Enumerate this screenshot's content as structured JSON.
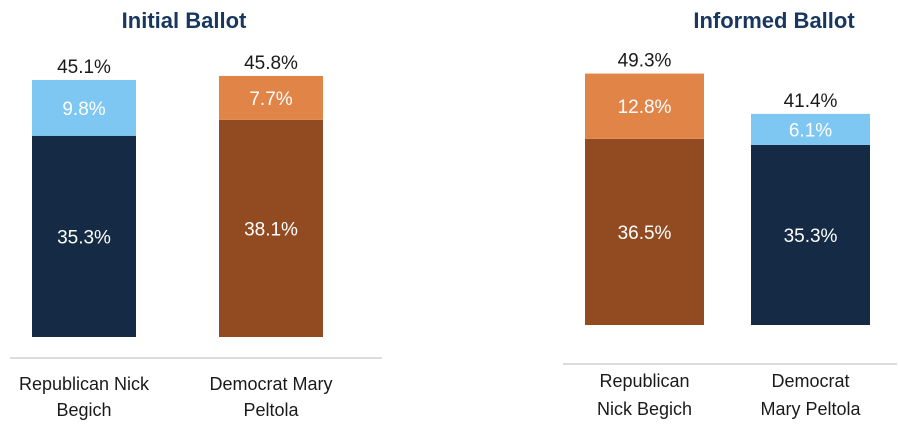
{
  "colors": {
    "navy": "#142a45",
    "light_blue": "#7ec7f2",
    "brown": "#924b21",
    "orange": "#e08448",
    "title": "#17375e",
    "axis": "#d0d0d0"
  },
  "chart_data": [
    {
      "type": "bar",
      "stacked": true,
      "title": "Initial Ballot",
      "categories": [
        "Republican Nick Begich",
        "Democrat Mary Peltola"
      ],
      "category_lines": [
        [
          "Republican Nick",
          "Begich"
        ],
        [
          "Democrat Mary",
          "Peltola"
        ]
      ],
      "ylim": [
        0,
        50
      ],
      "bars": [
        {
          "total": "45.1%",
          "segments": [
            {
              "value": 35.3,
              "label": "35.3%",
              "color": "#142a45"
            },
            {
              "value": 9.8,
              "label": "9.8%",
              "color": "#7ec7f2"
            }
          ]
        },
        {
          "total": "45.8%",
          "segments": [
            {
              "value": 38.1,
              "label": "38.1%",
              "color": "#924b21"
            },
            {
              "value": 7.7,
              "label": "7.7%",
              "color": "#e08448"
            }
          ]
        }
      ]
    },
    {
      "type": "bar",
      "stacked": true,
      "title": "Informed Ballot",
      "categories": [
        "Republican Nick Begich",
        "Democrat Mary Peltola"
      ],
      "category_lines": [
        [
          "Republican",
          "Nick Begich"
        ],
        [
          "Democrat",
          "Mary Peltola"
        ]
      ],
      "ylim": [
        0,
        50
      ],
      "bars": [
        {
          "total": "49.3%",
          "segments": [
            {
              "value": 36.5,
              "label": "36.5%",
              "color": "#924b21"
            },
            {
              "value": 12.8,
              "label": "12.8%",
              "color": "#e08448"
            }
          ]
        },
        {
          "total": "41.4%",
          "segments": [
            {
              "value": 35.3,
              "label": "35.3%",
              "color": "#142a45"
            },
            {
              "value": 6.1,
              "label": "6.1%",
              "color": "#7ec7f2"
            }
          ]
        }
      ]
    }
  ]
}
